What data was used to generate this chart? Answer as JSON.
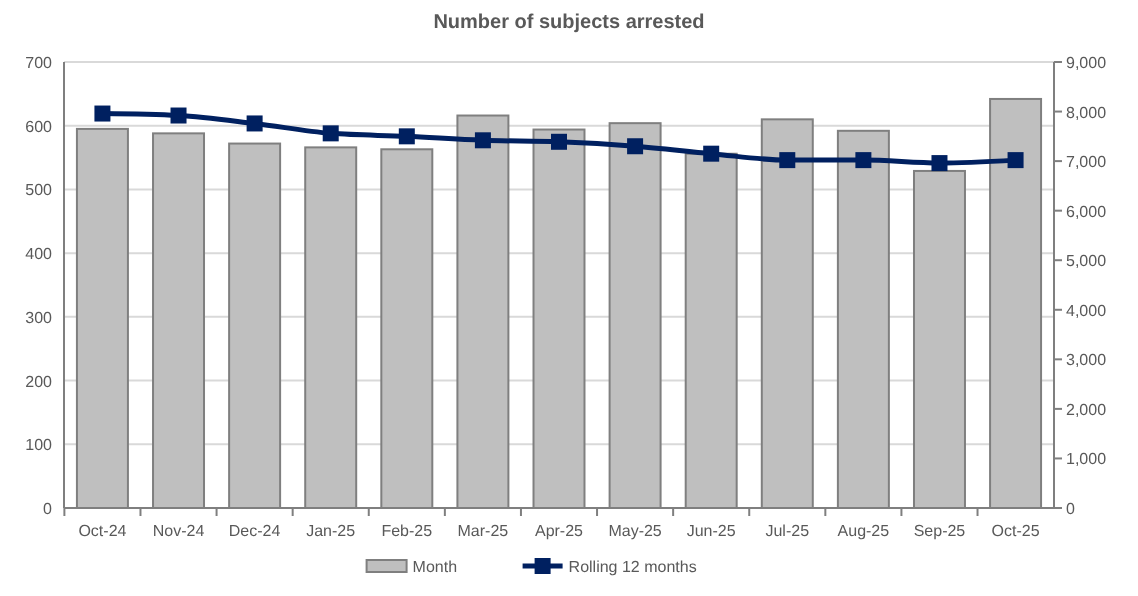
{
  "chart_data": {
    "type": "bar",
    "title": "Number of subjects arrested",
    "categories": [
      "Oct-24",
      "Nov-24",
      "Dec-24",
      "Jan-25",
      "Feb-25",
      "Mar-25",
      "Apr-25",
      "May-25",
      "Jun-25",
      "Jul-25",
      "Aug-25",
      "Sep-25",
      "Oct-25"
    ],
    "series": [
      {
        "name": "Month",
        "color": "#bfbfbf",
        "values": [
          595,
          588,
          572,
          566,
          563,
          616,
          594,
          604,
          556,
          610,
          592,
          529,
          642
        ]
      },
      {
        "name": "Rolling 12 months",
        "type": "line",
        "axis": "y2",
        "color": "#002060",
        "marker": "square",
        "values": [
          7960,
          7920,
          7760,
          7560,
          7500,
          7420,
          7390,
          7300,
          7150,
          7020,
          7020,
          6960,
          7020
        ]
      }
    ],
    "ylim": [
      0,
      700
    ],
    "yticks": [
      0,
      100,
      200,
      300,
      400,
      500,
      600,
      700
    ],
    "y2lim": [
      0,
      9000
    ],
    "y2ticks": [
      {
        "value": 0,
        "label": "0"
      },
      {
        "value": 1000,
        "label": "1,000"
      },
      {
        "value": 2000,
        "label": "2,000"
      },
      {
        "value": 3000,
        "label": "3,000"
      },
      {
        "value": 4000,
        "label": "4,000"
      },
      {
        "value": 5000,
        "label": "5,000"
      },
      {
        "value": 6000,
        "label": "6,000"
      },
      {
        "value": 7000,
        "label": "7,000"
      },
      {
        "value": 8000,
        "label": "8,000"
      },
      {
        "value": 9000,
        "label": "9,000"
      }
    ],
    "grid": "y",
    "legend": "bottom"
  }
}
